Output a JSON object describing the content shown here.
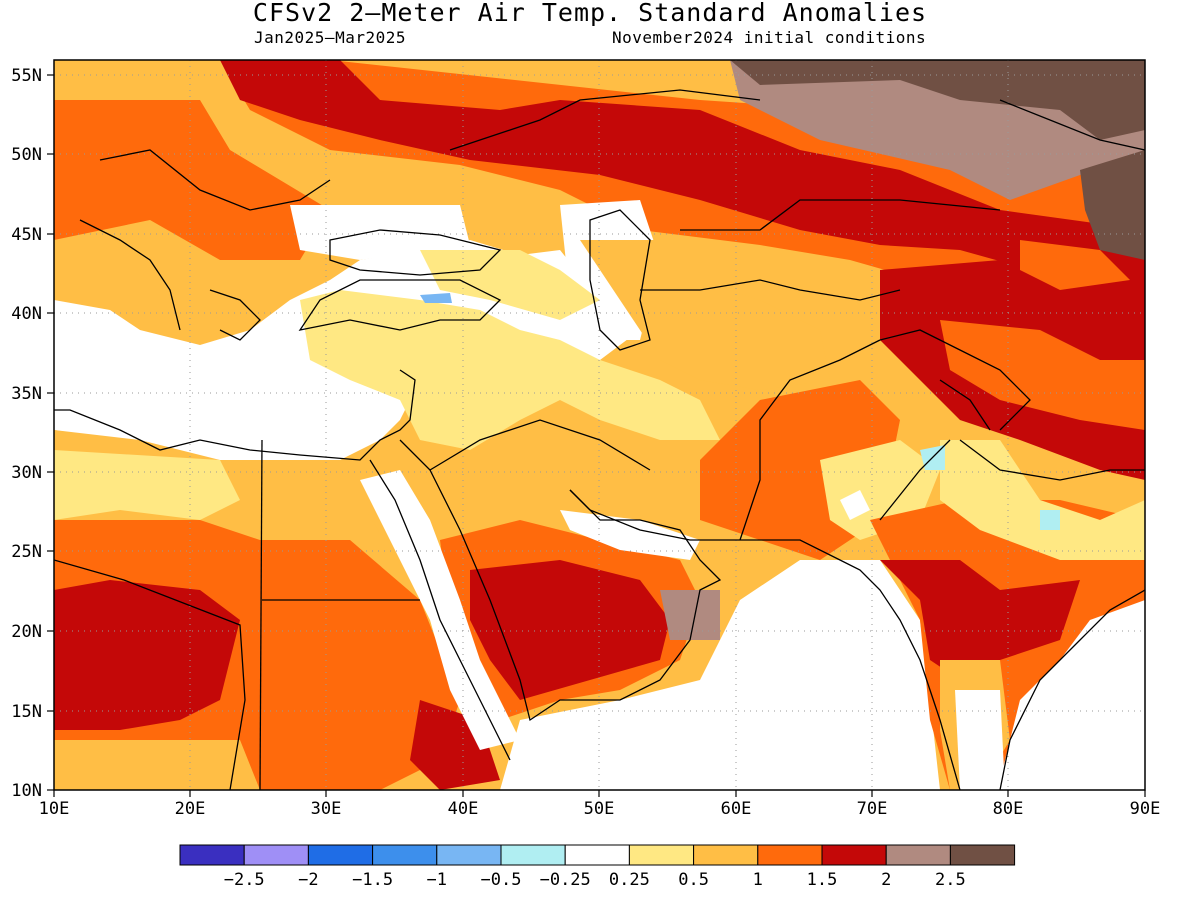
{
  "title": "CFSv2 2–Meter Air Temp. Standard Anomalies",
  "subtitle_left": "Jan2025–Mar2025",
  "subtitle_right": "November2024 initial conditions",
  "map": {
    "lon_range": [
      10,
      90
    ],
    "lat_range": [
      10,
      56
    ],
    "x_ticks": [
      "10E",
      "20E",
      "30E",
      "40E",
      "50E",
      "60E",
      "70E",
      "80E",
      "90E"
    ],
    "y_ticks": [
      "10N",
      "15N",
      "20N",
      "25N",
      "30N",
      "35N",
      "40N",
      "45N",
      "50N",
      "55N"
    ],
    "grid": "dotted"
  },
  "colorbar": {
    "colors": [
      "#3a2fc0",
      "#9f8ff6",
      "#1f6de6",
      "#3d8fec",
      "#78b6f3",
      "#b0eef2",
      "#ffffff",
      "#ffe883",
      "#ffbe45",
      "#ff6a0c",
      "#c40808",
      "#b08a80",
      "#705044"
    ],
    "labels": [
      "−2.5",
      "−2",
      "−1.5",
      "−1",
      "−0.5",
      "−0.25",
      "0.25",
      "0.5",
      "1",
      "1.5",
      "2",
      "2.5"
    ]
  },
  "colors": {
    "white": "#ffffff",
    "light_yellow": "#ffe883",
    "orange_light": "#ffbe45",
    "orange": "#ff6a0c",
    "red": "#c40808",
    "brown_light": "#b08a80",
    "brown_dark": "#705044",
    "cyan": "#b0eef2",
    "light_blue": "#78b6f3"
  }
}
